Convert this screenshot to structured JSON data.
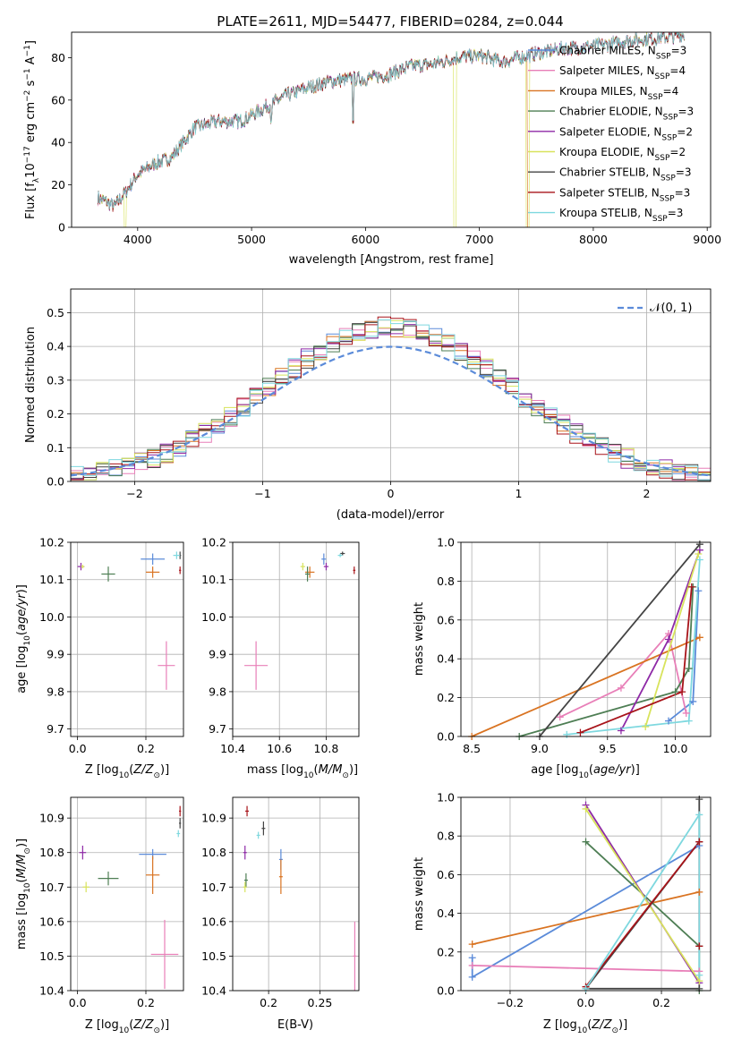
{
  "title": "PLATE=2611, MJD=54477, FIBERID=0284, z=0.044",
  "models": [
    {
      "key": "chabrier_miles",
      "label": "Chabrier MILES, N",
      "n": "=3",
      "color": "#5b8bd9"
    },
    {
      "key": "salpeter_miles",
      "label": "Salpeter MILES, N",
      "n": "=4",
      "color": "#e87fb8"
    },
    {
      "key": "kroupa_miles",
      "label": "Kroupa MILES, N",
      "n": "=4",
      "color": "#d97321"
    },
    {
      "key": "chabrier_elodie",
      "label": "Chabrier ELODIE, N",
      "n": "=3",
      "color": "#4e7e54"
    },
    {
      "key": "salpeter_elodie",
      "label": "Salpeter ELODIE, N",
      "n": "=2",
      "color": "#8e29a6"
    },
    {
      "key": "kroupa_elodie",
      "label": "Kroupa ELODIE, N",
      "n": "=2",
      "color": "#d8e35c"
    },
    {
      "key": "chabrier_stelib",
      "label": "Chabrier STELIB, N",
      "n": "=3",
      "color": "#444444"
    },
    {
      "key": "salpeter_stelib",
      "label": "Salpeter STELIB, N",
      "n": "=3",
      "color": "#a8141a"
    },
    {
      "key": "kroupa_stelib",
      "label": "Kroupa STELIB, N",
      "n": "=3",
      "color": "#7ed8df"
    }
  ],
  "legend_subscript": "SSP",
  "chart_data": [
    {
      "id": "spectrum",
      "type": "line",
      "xlabel": "wavelength [Angstrom, rest frame]",
      "ylabel": "Flux [f",
      "ylabel_sub": "λ",
      "ylabel_rest": "10",
      "ylabel_exp": "−17",
      "ylabel_units": " erg cm",
      "ylabel_units2": " s",
      "ylabel_units3": " A",
      "exp_m2": "−2",
      "exp_m1": "−1",
      "xlim": [
        3420,
        9030
      ],
      "ylim": [
        0,
        92
      ],
      "xticks": [
        4000,
        5000,
        6000,
        7000,
        8000,
        9000
      ],
      "yticks": [
        0,
        20,
        40,
        60,
        80
      ],
      "continuum": [
        [
          3650,
          14
        ],
        [
          3800,
          10
        ],
        [
          3900,
          17
        ],
        [
          4000,
          25
        ],
        [
          4150,
          30
        ],
        [
          4300,
          33
        ],
        [
          4500,
          47
        ],
        [
          4700,
          50
        ],
        [
          4900,
          50
        ],
        [
          5100,
          56
        ],
        [
          5300,
          62
        ],
        [
          5500,
          66
        ],
        [
          5700,
          69
        ],
        [
          5900,
          70
        ],
        [
          6000,
          70
        ],
        [
          6200,
          72
        ],
        [
          6400,
          76
        ],
        [
          6600,
          77
        ],
        [
          6800,
          80
        ],
        [
          7000,
          81
        ],
        [
          7200,
          78
        ],
        [
          7500,
          82
        ],
        [
          7700,
          84
        ],
        [
          7900,
          85
        ],
        [
          8100,
          86
        ],
        [
          8300,
          88
        ],
        [
          8500,
          89
        ],
        [
          8700,
          90
        ],
        [
          8800,
          91
        ]
      ]
    },
    {
      "id": "residuals",
      "type": "histogram",
      "xlabel": "(data-model)/error",
      "ylabel": "Normed distribution",
      "legend": "𝒩(0, 1)",
      "xlim": [
        -2.5,
        2.5
      ],
      "ylim": [
        0,
        0.57
      ],
      "xticks": [
        -2,
        -1,
        0,
        1,
        2
      ],
      "yticks": [
        0.0,
        0.1,
        0.2,
        0.3,
        0.4,
        0.5
      ],
      "bin_width": 0.1
    },
    {
      "id": "age_vs_Z",
      "type": "scatter",
      "xlabel": "Z [log",
      "ylabel": "age  [log",
      "xlim": [
        -0.02,
        0.31
      ],
      "ylim": [
        9.68,
        10.2
      ],
      "xticks": [
        0.0,
        0.2
      ],
      "yticks": [
        9.7,
        9.8,
        9.9,
        10.0,
        10.1,
        10.2
      ],
      "points": [
        {
          "m": 0,
          "x": 0.22,
          "y": 10.155,
          "xerr": 0.035,
          "yerr": 0.015
        },
        {
          "m": 1,
          "x": 0.26,
          "y": 9.87,
          "xerr": 0.025,
          "yerr": 0.065
        },
        {
          "m": 2,
          "x": 0.22,
          "y": 10.12,
          "xerr": 0.02,
          "yerr": 0.015
        },
        {
          "m": 3,
          "x": 0.09,
          "y": 10.115,
          "xerr": 0.02,
          "yerr": 0.02
        },
        {
          "m": 4,
          "x": 0.01,
          "y": 10.135,
          "xerr": 0.01,
          "yerr": 0.01
        },
        {
          "m": 5,
          "x": 0.015,
          "y": 10.135,
          "xerr": 0.005,
          "yerr": 0.005
        },
        {
          "m": 6,
          "x": 0.3,
          "y": 10.165,
          "xerr": 0.003,
          "yerr": 0.01
        },
        {
          "m": 7,
          "x": 0.3,
          "y": 10.125,
          "xerr": 0.003,
          "yerr": 0.01
        },
        {
          "m": 8,
          "x": 0.29,
          "y": 10.165,
          "xerr": 0.01,
          "yerr": 0.01
        }
      ]
    },
    {
      "id": "age_vs_mass",
      "type": "scatter",
      "xlabel": "mass [log",
      "ylabel": "",
      "xlim": [
        10.4,
        10.94
      ],
      "ylim": [
        9.68,
        10.2
      ],
      "xticks": [
        10.4,
        10.6,
        10.8
      ],
      "yticks": [
        9.7,
        9.8,
        9.9,
        10.0,
        10.1,
        10.2
      ],
      "points": [
        {
          "m": 0,
          "x": 10.79,
          "y": 10.155,
          "xerr": 0.01,
          "yerr": 0.015
        },
        {
          "m": 1,
          "x": 10.5,
          "y": 9.87,
          "xerr": 0.05,
          "yerr": 0.065
        },
        {
          "m": 2,
          "x": 10.73,
          "y": 10.12,
          "xerr": 0.02,
          "yerr": 0.015
        },
        {
          "m": 3,
          "x": 10.72,
          "y": 10.115,
          "xerr": 0.01,
          "yerr": 0.02
        },
        {
          "m": 4,
          "x": 10.8,
          "y": 10.135,
          "xerr": 0.01,
          "yerr": 0.01
        },
        {
          "m": 5,
          "x": 10.7,
          "y": 10.135,
          "xerr": 0.01,
          "yerr": 0.01
        },
        {
          "m": 6,
          "x": 10.87,
          "y": 10.17,
          "xerr": 0.01,
          "yerr": 0.005
        },
        {
          "m": 7,
          "x": 10.92,
          "y": 10.125,
          "xerr": 0.005,
          "yerr": 0.01
        },
        {
          "m": 8,
          "x": 10.86,
          "y": 10.165,
          "xerr": 0.01,
          "yerr": 0.005
        }
      ]
    },
    {
      "id": "mw_vs_age",
      "type": "line",
      "xlabel": "age  [log",
      "ylabel": "mass weight",
      "xlim": [
        8.42,
        10.26
      ],
      "ylim": [
        0,
        1
      ],
      "xticks": [
        8.5,
        9.0,
        9.5,
        10.0
      ],
      "yticks": [
        0.0,
        0.2,
        0.4,
        0.6,
        0.8,
        1.0
      ],
      "series": [
        {
          "m": 0,
          "x": [
            9.95,
            10.13,
            10.17
          ],
          "y": [
            0.08,
            0.18,
            0.75
          ]
        },
        {
          "m": 1,
          "x": [
            9.15,
            9.6,
            9.95,
            10.08
          ],
          "y": [
            0.1,
            0.25,
            0.53,
            0.12
          ]
        },
        {
          "m": 2,
          "x": [
            8.5,
            10.18
          ],
          "y": [
            0.0,
            0.51
          ]
        },
        {
          "m": 3,
          "x": [
            8.85,
            10.0,
            10.1,
            10.13
          ],
          "y": [
            0.0,
            0.23,
            0.35,
            0.77
          ]
        },
        {
          "m": 4,
          "x": [
            9.6,
            9.95,
            10.18
          ],
          "y": [
            0.03,
            0.5,
            0.96
          ]
        },
        {
          "m": 5,
          "x": [
            9.78,
            10.17
          ],
          "y": [
            0.05,
            0.94
          ]
        },
        {
          "m": 6,
          "x": [
            9.0,
            10.18
          ],
          "y": [
            0.0,
            0.99
          ]
        },
        {
          "m": 7,
          "x": [
            9.3,
            10.05,
            10.12
          ],
          "y": [
            0.02,
            0.23,
            0.77
          ]
        },
        {
          "m": 8,
          "x": [
            9.2,
            10.1,
            10.18
          ],
          "y": [
            0.01,
            0.08,
            0.91
          ]
        }
      ]
    },
    {
      "id": "mass_vs_Z",
      "type": "scatter",
      "xlabel": "Z [log",
      "ylabel": "mass [log",
      "xlim": [
        -0.02,
        0.31
      ],
      "ylim": [
        10.4,
        10.96
      ],
      "xticks": [
        0.0,
        0.2
      ],
      "yticks": [
        10.4,
        10.5,
        10.6,
        10.7,
        10.8,
        10.9
      ],
      "points": [
        {
          "m": 0,
          "x": 0.22,
          "y": 10.795,
          "xerr": 0.04,
          "yerr": 0.015
        },
        {
          "m": 1,
          "x": 0.255,
          "y": 10.505,
          "xerr": 0.04,
          "yerr": 0.1
        },
        {
          "m": 2,
          "x": 0.22,
          "y": 10.735,
          "xerr": 0.02,
          "yerr": 0.055
        },
        {
          "m": 3,
          "x": 0.09,
          "y": 10.725,
          "xerr": 0.03,
          "yerr": 0.02
        },
        {
          "m": 4,
          "x": 0.015,
          "y": 10.8,
          "xerr": 0.01,
          "yerr": 0.02
        },
        {
          "m": 5,
          "x": 0.025,
          "y": 10.7,
          "xerr": 0.01,
          "yerr": 0.015
        },
        {
          "m": 6,
          "x": 0.3,
          "y": 10.885,
          "xerr": 0.003,
          "yerr": 0.015
        },
        {
          "m": 7,
          "x": 0.3,
          "y": 10.92,
          "xerr": 0.003,
          "yerr": 0.015
        },
        {
          "m": 8,
          "x": 0.295,
          "y": 10.855,
          "xerr": 0.005,
          "yerr": 0.01
        }
      ]
    },
    {
      "id": "mass_vs_ebv",
      "type": "scatter",
      "xlabel": "E(B-V)",
      "ylabel": "",
      "xlim": [
        0.165,
        0.288
      ],
      "ylim": [
        10.4,
        10.96
      ],
      "xticks": [
        0.2,
        0.25
      ],
      "yticks": [
        10.4,
        10.5,
        10.6,
        10.7,
        10.8,
        10.9
      ],
      "points": [
        {
          "m": 0,
          "x": 0.212,
          "y": 10.78,
          "xerr": 0,
          "yerr": 0.03
        },
        {
          "m": 1,
          "x": 0.284,
          "y": 10.5,
          "xerr": 0,
          "yerr": 0.1
        },
        {
          "m": 2,
          "x": 0.212,
          "y": 10.73,
          "xerr": 0,
          "yerr": 0.05
        },
        {
          "m": 3,
          "x": 0.178,
          "y": 10.72,
          "xerr": 0,
          "yerr": 0.02
        },
        {
          "m": 4,
          "x": 0.177,
          "y": 10.8,
          "xerr": 0,
          "yerr": 0.02
        },
        {
          "m": 5,
          "x": 0.177,
          "y": 10.7,
          "xerr": 0,
          "yerr": 0.015
        },
        {
          "m": 6,
          "x": 0.195,
          "y": 10.87,
          "xerr": 0,
          "yerr": 0.02
        },
        {
          "m": 7,
          "x": 0.179,
          "y": 10.92,
          "xerr": 0,
          "yerr": 0.015
        },
        {
          "m": 8,
          "x": 0.19,
          "y": 10.85,
          "xerr": 0,
          "yerr": 0.01
        }
      ]
    },
    {
      "id": "mw_vs_Z",
      "type": "line",
      "xlabel": "Z [log",
      "ylabel": "mass weight",
      "xlim": [
        -0.33,
        0.33
      ],
      "ylim": [
        0,
        1
      ],
      "xticks": [
        -0.2,
        0.0,
        0.2
      ],
      "yticks": [
        0.0,
        0.2,
        0.4,
        0.6,
        0.8,
        1.0
      ],
      "series": [
        {
          "m": 0,
          "x": [
            -0.3,
            -0.3,
            0.3
          ],
          "y": [
            0.17,
            0.07,
            0.75
          ]
        },
        {
          "m": 1,
          "x": [
            -0.3,
            0.3
          ],
          "y": [
            0.13,
            0.1
          ]
        },
        {
          "m": 2,
          "x": [
            -0.3,
            0.3
          ],
          "y": [
            0.24,
            0.51
          ]
        },
        {
          "m": 3,
          "x": [
            0.0,
            0.3,
            0.3
          ],
          "y": [
            0.77,
            0.23,
            0.0
          ]
        },
        {
          "m": 4,
          "x": [
            0.0,
            0.3
          ],
          "y": [
            0.96,
            0.04
          ]
        },
        {
          "m": 5,
          "x": [
            0.0,
            0.3
          ],
          "y": [
            0.94,
            0.05
          ]
        },
        {
          "m": 6,
          "x": [
            0.3,
            0.3,
            0.0,
            0.3
          ],
          "y": [
            0.99,
            0.77,
            0.01,
            0.01
          ]
        },
        {
          "m": 7,
          "x": [
            0.0,
            0.3,
            0.3
          ],
          "y": [
            0.02,
            0.77,
            0.23
          ]
        },
        {
          "m": 8,
          "x": [
            0.0,
            0.3,
            0.3
          ],
          "y": [
            0.01,
            0.91,
            0.08
          ]
        }
      ]
    }
  ]
}
